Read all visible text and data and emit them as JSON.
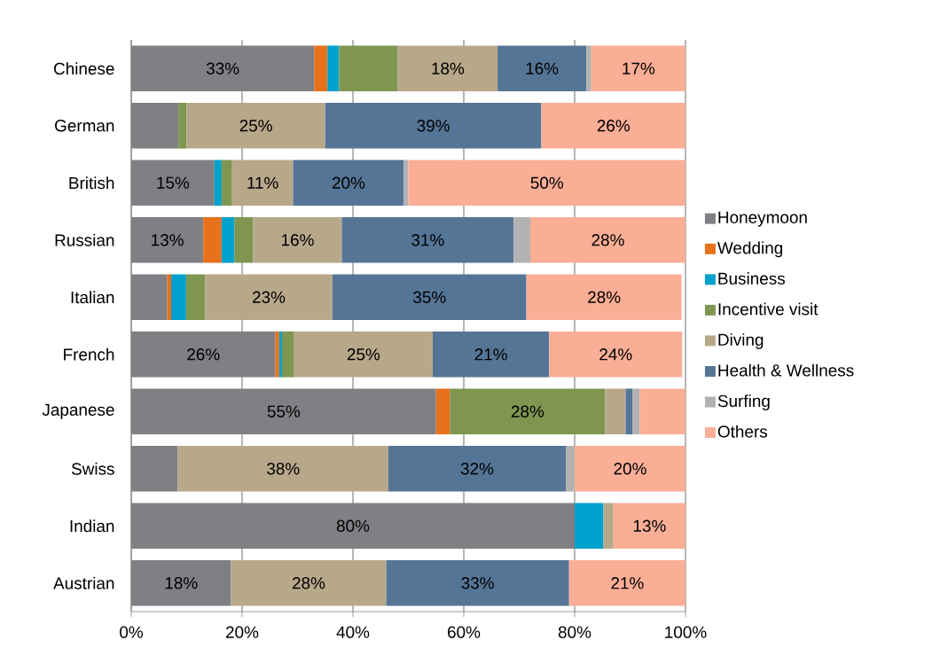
{
  "chart_data": {
    "type": "bar",
    "orientation": "horizontal",
    "stacked": true,
    "categories": [
      "Chinese",
      "German",
      "British",
      "Russian",
      "Italian",
      "French",
      "Japanese",
      "Swiss",
      "Indian",
      "Austrian"
    ],
    "series": [
      {
        "name": "Honeymoon",
        "color": "#7f7f84",
        "values": [
          33,
          8.5,
          15,
          13,
          6.5,
          26,
          55,
          8.4,
          80,
          18
        ],
        "value_labels": [
          "33%",
          null,
          "15%",
          "13%",
          null,
          "26%",
          "55%",
          null,
          "80%",
          "18%"
        ]
      },
      {
        "name": "Wedding",
        "color": "#e8711c",
        "values": [
          2.4,
          null,
          null,
          3.3,
          0.7,
          0.7,
          2.5,
          null,
          null,
          null
        ]
      },
      {
        "name": "Business",
        "color": "#00a1cc",
        "values": [
          2.1,
          null,
          1.3,
          2.3,
          2.7,
          0.5,
          null,
          null,
          5.2,
          null
        ]
      },
      {
        "name": "Incentive visit",
        "color": "#7f9650",
        "values": [
          10.6,
          1.5,
          1.9,
          3.4,
          3.4,
          2.2,
          28,
          null,
          null,
          null
        ],
        "value_labels": [
          null,
          null,
          null,
          null,
          null,
          null,
          "28%",
          null,
          null,
          null
        ]
      },
      {
        "name": "Diving",
        "color": "#b8a88a",
        "values": [
          18,
          25,
          11,
          16,
          23,
          25,
          3.7,
          38,
          1.8,
          28
        ],
        "value_labels": [
          "18%",
          "25%",
          "11%",
          "16%",
          "23%",
          "25%",
          null,
          "38%",
          null,
          "28%"
        ]
      },
      {
        "name": "Health & Wellness",
        "color": "#557596",
        "values": [
          16,
          39,
          20,
          31,
          35,
          21,
          1.2,
          32,
          null,
          33
        ],
        "value_labels": [
          "16%",
          "39%",
          "20%",
          "31%",
          "35%",
          "21%",
          null,
          "32%",
          null,
          "33%"
        ]
      },
      {
        "name": "Surfing",
        "color": "#b2b2b2",
        "values": [
          0.9,
          null,
          0.8,
          3,
          null,
          null,
          1.3,
          1.6,
          null,
          null
        ]
      },
      {
        "name": "Others",
        "color": "#fbae96",
        "values": [
          17,
          26,
          50,
          28,
          28,
          24,
          8.3,
          20,
          13,
          21
        ],
        "value_labels": [
          "17%",
          "26%",
          "50%",
          "28%",
          "28%",
          "24%",
          null,
          "20%",
          "13%",
          "21%"
        ]
      }
    ],
    "xlim": [
      0,
      100
    ],
    "xticks": [
      {
        "value": 0,
        "label": "0%"
      },
      {
        "value": 20,
        "label": "20%"
      },
      {
        "value": 40,
        "label": "40%"
      },
      {
        "value": 60,
        "label": "60%"
      },
      {
        "value": 80,
        "label": "80%"
      },
      {
        "value": 100,
        "label": "100%"
      }
    ],
    "grid": "x",
    "legend": "right"
  }
}
